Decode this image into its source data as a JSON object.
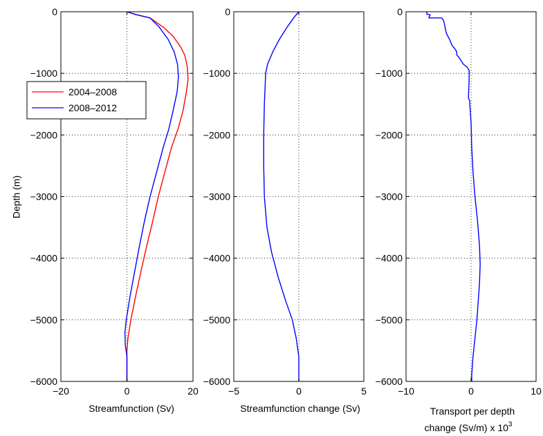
{
  "chart_data": [
    {
      "type": "line",
      "xlabel": "Streamfunction (Sv)",
      "ylabel": "Depth (m)",
      "xlim": [
        -20,
        20
      ],
      "ylim": [
        -6000,
        0
      ],
      "xticks": [
        "−20",
        "0",
        "20"
      ],
      "yticks": [
        "0",
        "−1000",
        "−2000",
        "−3000",
        "−4000",
        "−5000",
        "−6000"
      ],
      "grid": true,
      "legend_position": "upper-left",
      "series": [
        {
          "name": "2004–2008",
          "color": "#ff0000",
          "points": [
            [
              0,
              0
            ],
            [
              3,
              -50
            ],
            [
              7,
              -100
            ],
            [
              11,
              -250
            ],
            [
              14,
              -400
            ],
            [
              16,
              -550
            ],
            [
              17.5,
              -700
            ],
            [
              18.3,
              -900
            ],
            [
              18.5,
              -1100
            ],
            [
              18,
              -1300
            ],
            [
              17,
              -1600
            ],
            [
              15.5,
              -1900
            ],
            [
              13.5,
              -2200
            ],
            [
              11.5,
              -2600
            ],
            [
              9.5,
              -3000
            ],
            [
              7.8,
              -3400
            ],
            [
              6,
              -3800
            ],
            [
              4.3,
              -4200
            ],
            [
              2.7,
              -4600
            ],
            [
              1.2,
              -5000
            ],
            [
              0.3,
              -5300
            ],
            [
              0,
              -5500
            ],
            [
              0,
              -6000
            ]
          ]
        },
        {
          "name": "2008–2012",
          "color": "#0000ff",
          "points": [
            [
              0,
              0
            ],
            [
              3,
              -50
            ],
            [
              7,
              -100
            ],
            [
              9.8,
              -250
            ],
            [
              12.5,
              -450
            ],
            [
              14.3,
              -650
            ],
            [
              15.3,
              -850
            ],
            [
              15.6,
              -1050
            ],
            [
              15.2,
              -1300
            ],
            [
              14,
              -1600
            ],
            [
              12.7,
              -1900
            ],
            [
              11,
              -2200
            ],
            [
              9,
              -2600
            ],
            [
              7,
              -3000
            ],
            [
              5.3,
              -3400
            ],
            [
              3.8,
              -3800
            ],
            [
              2.4,
              -4200
            ],
            [
              1,
              -4600
            ],
            [
              -0.2,
              -5000
            ],
            [
              -0.6,
              -5200
            ],
            [
              -0.5,
              -5400
            ],
            [
              0,
              -5600
            ],
            [
              0,
              -6000
            ]
          ]
        }
      ]
    },
    {
      "type": "line",
      "xlabel": "Streamfunction change (Sv)",
      "xlim": [
        -5,
        5
      ],
      "ylim": [
        -6000,
        0
      ],
      "xticks": [
        "−5",
        "0",
        "5"
      ],
      "yticks": [
        "0",
        "−1000",
        "−2000",
        "−3000",
        "−4000",
        "−5000",
        "−6000"
      ],
      "grid": true,
      "series": [
        {
          "color": "#0000ff",
          "points": [
            [
              0,
              0
            ],
            [
              -0.4,
              -100
            ],
            [
              -0.9,
              -250
            ],
            [
              -1.5,
              -450
            ],
            [
              -2,
              -650
            ],
            [
              -2.4,
              -850
            ],
            [
              -2.55,
              -1000
            ],
            [
              -2.65,
              -1500
            ],
            [
              -2.7,
              -2000
            ],
            [
              -2.7,
              -2500
            ],
            [
              -2.65,
              -3000
            ],
            [
              -2.45,
              -3500
            ],
            [
              -2.1,
              -3900
            ],
            [
              -1.6,
              -4300
            ],
            [
              -1,
              -4700
            ],
            [
              -0.5,
              -5000
            ],
            [
              -0.2,
              -5300
            ],
            [
              0,
              -5600
            ],
            [
              0,
              -6000
            ]
          ]
        }
      ]
    },
    {
      "type": "line",
      "xlabel": "Transport per depth",
      "xlabel2": "change (Sv/m) x 10",
      "xlabel_sup": "3",
      "xlim": [
        -10,
        10
      ],
      "ylim": [
        -6000,
        0
      ],
      "xticks": [
        "−10",
        "0",
        "10"
      ],
      "yticks": [
        "0",
        "−1000",
        "−2000",
        "−3000",
        "−4000",
        "−5000",
        "−6000"
      ],
      "grid": true,
      "series": [
        {
          "color": "#0000ff",
          "points": [
            [
              -6.8,
              0
            ],
            [
              -6.8,
              -40
            ],
            [
              -6.3,
              -50
            ],
            [
              -6.5,
              -100
            ],
            [
              -4.5,
              -100
            ],
            [
              -4.2,
              -150
            ],
            [
              -4,
              -250
            ],
            [
              -3.8,
              -350
            ],
            [
              -3.3,
              -450
            ],
            [
              -2.9,
              -550
            ],
            [
              -2.5,
              -600
            ],
            [
              -2.2,
              -650
            ],
            [
              -2.2,
              -700
            ],
            [
              -1.8,
              -750
            ],
            [
              -1.2,
              -850
            ],
            [
              -0.6,
              -900
            ],
            [
              -0.3,
              -950
            ],
            [
              -0.3,
              -1100
            ],
            [
              -0.4,
              -1400
            ],
            [
              -0.2,
              -1450
            ],
            [
              -0.2,
              -1500
            ],
            [
              0,
              -1800
            ],
            [
              0.1,
              -2200
            ],
            [
              0.3,
              -2600
            ],
            [
              0.6,
              -3000
            ],
            [
              1,
              -3400
            ],
            [
              1.3,
              -3800
            ],
            [
              1.4,
              -4100
            ],
            [
              1.3,
              -4400
            ],
            [
              1.1,
              -4700
            ],
            [
              0.9,
              -5000
            ],
            [
              0.6,
              -5300
            ],
            [
              0.3,
              -5600
            ],
            [
              0.1,
              -5900
            ],
            [
              0.1,
              -6000
            ]
          ]
        }
      ]
    }
  ]
}
